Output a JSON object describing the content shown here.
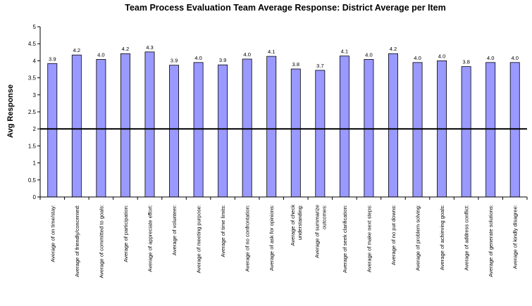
{
  "chart_data": {
    "type": "bar",
    "title": "Team Process Evaluation Team Average Response: District Average per Item",
    "xlabel": "",
    "ylabel": "Avg Response",
    "ylim": [
      0,
      5
    ],
    "yticks": [
      "0",
      "0.5",
      "1",
      "1.5",
      "2",
      "2.5",
      "3",
      "3.5",
      "4",
      "4.5",
      "5"
    ],
    "reference_line": 2,
    "grid": false,
    "bar_color": "#9999ff",
    "categories": [
      [
        "Average of on time/stay:"
      ],
      [
        "Average of friendly/concerned:"
      ],
      [
        "Average of committed to goals:"
      ],
      [
        "Average of participation:"
      ],
      [
        "Average of appreciate effort:"
      ],
      [
        "Average of volunteer:"
      ],
      [
        "Average of meeting purpose:"
      ],
      [
        "Average of time limits:"
      ],
      [
        "Average of no confrontation:"
      ],
      [
        "Average of ask for opinions:"
      ],
      [
        "Average of check",
        "understanding:"
      ],
      [
        "Average of summarize",
        "outcomes:"
      ],
      [
        "Average of seek clarification:"
      ],
      [
        "Average of make next steps:"
      ],
      [
        "Average of no put downs:"
      ],
      [
        "Average of problem solving:"
      ],
      [
        "Average of achieving goals:"
      ],
      [
        "Average of address conflict:"
      ],
      [
        "Average of generate solutions:"
      ],
      [
        "Average of kindly disagree:"
      ]
    ],
    "values": [
      3.92,
      4.17,
      4.04,
      4.21,
      4.26,
      3.87,
      3.95,
      3.88,
      4.05,
      4.13,
      3.76,
      3.72,
      4.14,
      4.04,
      4.21,
      3.95,
      4.0,
      3.83,
      3.95,
      3.95
    ],
    "data_labels": [
      "3.9",
      "4.2",
      "4.0",
      "4.2",
      "4.3",
      "3.9",
      "4.0",
      "3.9",
      "4.0",
      "4.1",
      "3.8",
      "3.7",
      "4.1",
      "4.0",
      "4.2",
      "4.0",
      "4.0",
      "3.8",
      "4.0",
      "4.0"
    ]
  }
}
